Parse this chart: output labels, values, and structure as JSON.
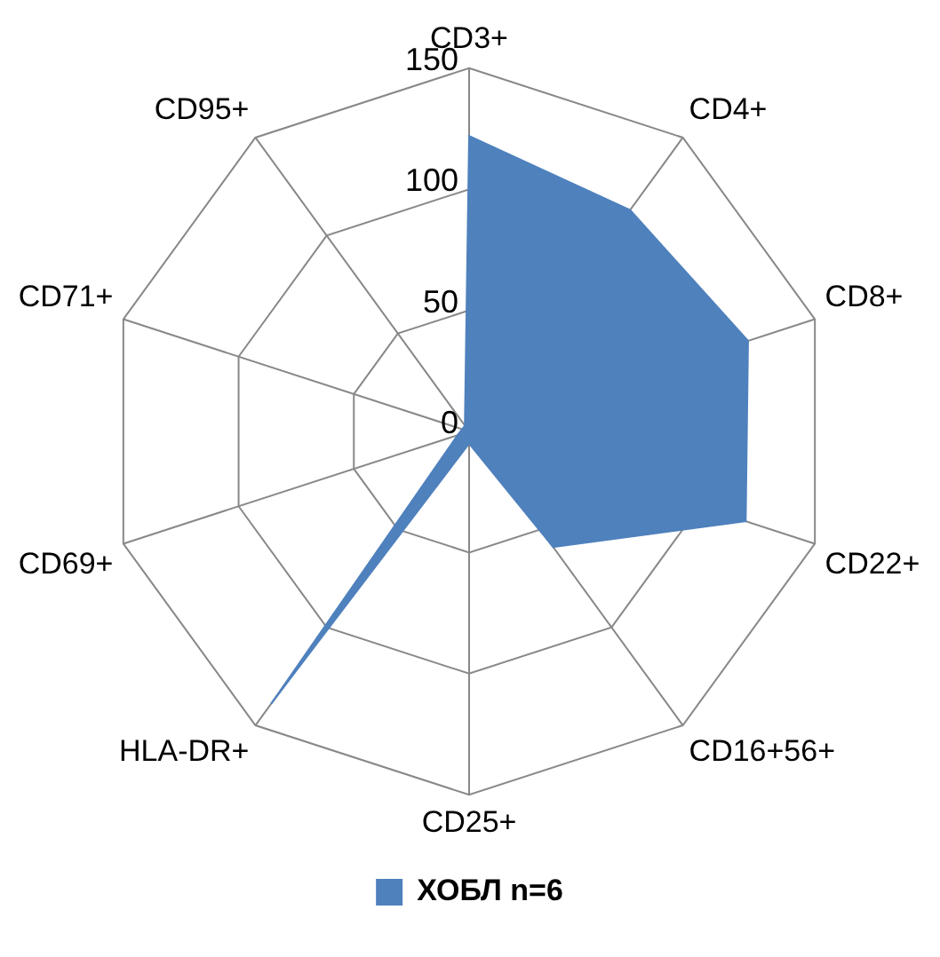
{
  "chart_data": {
    "type": "radar",
    "categories": [
      "CD3+",
      "CD4+",
      "CD8+",
      "CD22+",
      "CD16+56+",
      "CD25+",
      "HLA-DR+",
      "CD69+",
      "CD71+",
      "CD95+"
    ],
    "series": [
      {
        "name": "ХОБЛ n=6",
        "color": "#4f81bd",
        "values": [
          122,
          113,
          121,
          120,
          59,
          5,
          139,
          5,
          3,
          3
        ]
      }
    ],
    "ylim": [
      0,
      150
    ],
    "yticks": [
      0,
      50,
      100,
      150
    ],
    "grid": true,
    "legend": "bottom"
  }
}
